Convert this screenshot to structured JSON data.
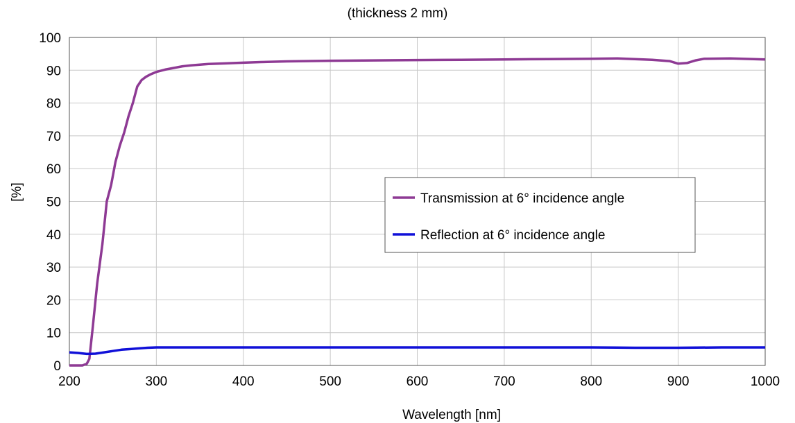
{
  "chart_data": {
    "type": "line",
    "title": "(thickness 2 mm)",
    "xlabel": "Wavelength [nm]",
    "ylabel": "[%]",
    "xlim": [
      200,
      1000
    ],
    "ylim": [
      0,
      100
    ],
    "xticks": [
      200,
      300,
      400,
      500,
      600,
      700,
      800,
      900,
      1000
    ],
    "yticks": [
      0,
      10,
      20,
      30,
      40,
      50,
      60,
      70,
      80,
      90,
      100
    ],
    "grid": true,
    "legend_position": "center-right",
    "series": [
      {
        "name": "Transmission at 6° incidence angle",
        "color": "#8e3a94",
        "x": [
          200,
          215,
          220,
          223,
          227,
          232,
          238,
          243,
          248,
          253,
          258,
          263,
          268,
          273,
          278,
          283,
          288,
          293,
          300,
          310,
          320,
          330,
          340,
          350,
          360,
          380,
          400,
          420,
          450,
          500,
          550,
          600,
          650,
          700,
          750,
          800,
          830,
          850,
          870,
          890,
          900,
          910,
          920,
          930,
          960,
          1000
        ],
        "y": [
          0,
          0,
          0.5,
          2,
          12,
          25,
          37,
          50,
          55,
          62,
          67,
          71,
          76,
          80,
          85,
          87,
          88,
          88.7,
          89.5,
          90.2,
          90.7,
          91.2,
          91.5,
          91.7,
          91.9,
          92.1,
          92.3,
          92.5,
          92.7,
          92.9,
          93.0,
          93.1,
          93.2,
          93.3,
          93.4,
          93.5,
          93.6,
          93.4,
          93.2,
          92.8,
          92.0,
          92.2,
          93.0,
          93.5,
          93.6,
          93.3
        ]
      },
      {
        "name": "Reflection at 6° incidence angle",
        "color": "#1010d8",
        "x": [
          200,
          210,
          220,
          230,
          240,
          250,
          260,
          270,
          280,
          290,
          300,
          400,
          500,
          600,
          700,
          750,
          800,
          850,
          900,
          950,
          1000
        ],
        "y": [
          4.0,
          3.8,
          3.5,
          3.6,
          4.0,
          4.4,
          4.8,
          5.0,
          5.2,
          5.4,
          5.5,
          5.5,
          5.5,
          5.5,
          5.5,
          5.5,
          5.5,
          5.4,
          5.4,
          5.5,
          5.5
        ]
      }
    ]
  }
}
